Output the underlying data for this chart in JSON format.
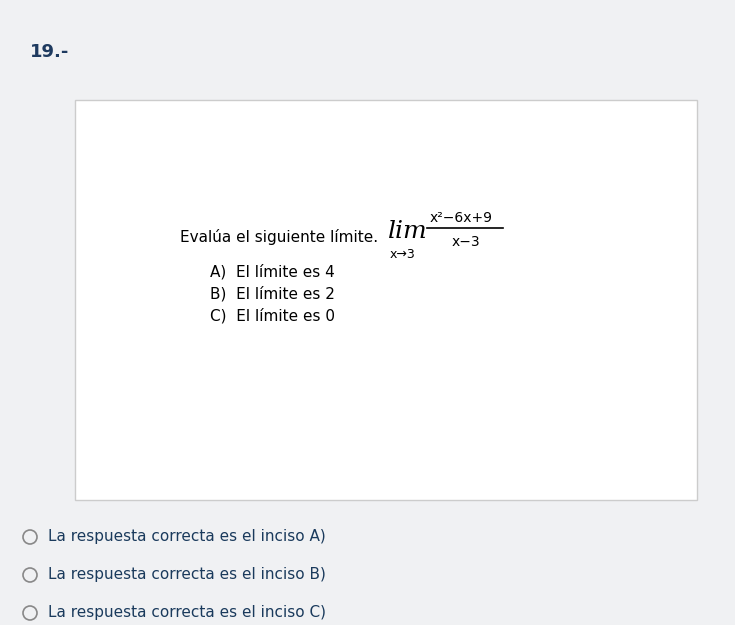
{
  "question_number": "19.-",
  "background_color": "#f0f1f3",
  "box_facecolor": "#ffffff",
  "box_edgecolor": "#cccccc",
  "problem_text": "Evalúa el siguiente límite.",
  "lim_text": "lim",
  "limit_sub_text": "x→3",
  "numerator_text": "x²−6x+9",
  "denominator_text": "x−3",
  "options": [
    "A)  El límite es 4",
    "B)  El límite es 2",
    "C)  El límite es 0"
  ],
  "radio_options": [
    "La respuesta correcta es el inciso A)",
    "La respuesta correcta es el inciso B)",
    "La respuesta correcta es el inciso C)"
  ],
  "radio_text_color": "#1a3a5c"
}
